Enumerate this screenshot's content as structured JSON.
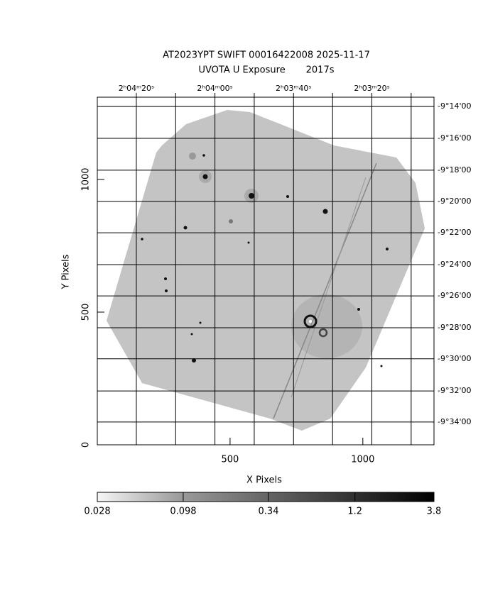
{
  "chart_data": {
    "type": "image",
    "title": "AT2023YPT SWIFT 00016422008 2025-11-17",
    "subtitle": "UVOTA U Exposure       2017s",
    "x_label": "X Pixels",
    "y_label": "Y Pixels",
    "xlim": [
      0,
      1268
    ],
    "ylim": [
      0,
      1310
    ],
    "xticks": [
      500,
      1000
    ],
    "yticks": [
      0,
      500,
      1000
    ],
    "x2ticks": [
      {
        "value": 147,
        "label": "2ʰ04ᵐ20ˢ"
      },
      {
        "value": 295,
        "label": null
      },
      {
        "value": 443,
        "label": "2ʰ04ᵐ00ˢ"
      },
      {
        "value": 591,
        "label": null
      },
      {
        "value": 739,
        "label": "2ʰ03ᵐ40ˢ"
      },
      {
        "value": 886,
        "label": null
      },
      {
        "value": 1034,
        "label": "2ʰ03ᵐ20ˢ"
      },
      {
        "value": 1182,
        "label": null
      }
    ],
    "y2ticks": [
      {
        "value": 1275,
        "label": "-9°14'00"
      },
      {
        "value": 1155,
        "label": "-9°16'00"
      },
      {
        "value": 1035,
        "label": "-9°18'00"
      },
      {
        "value": 917,
        "label": "-9°20'00"
      },
      {
        "value": 799,
        "label": "-9°22'00"
      },
      {
        "value": 679,
        "label": "-9°24'00"
      },
      {
        "value": 561,
        "label": "-9°26'00"
      },
      {
        "value": 441,
        "label": "-9°28'00"
      },
      {
        "value": 324,
        "label": "-9°30'00"
      },
      {
        "value": 203,
        "label": "-9°32'00"
      },
      {
        "value": 86,
        "label": "-9°34'00"
      }
    ],
    "grid": true,
    "colorbar": {
      "log": true,
      "lim": [
        0.028,
        3.8
      ],
      "ticks": [
        0.028,
        0.098,
        0.34,
        1.2,
        3.8
      ]
    }
  }
}
